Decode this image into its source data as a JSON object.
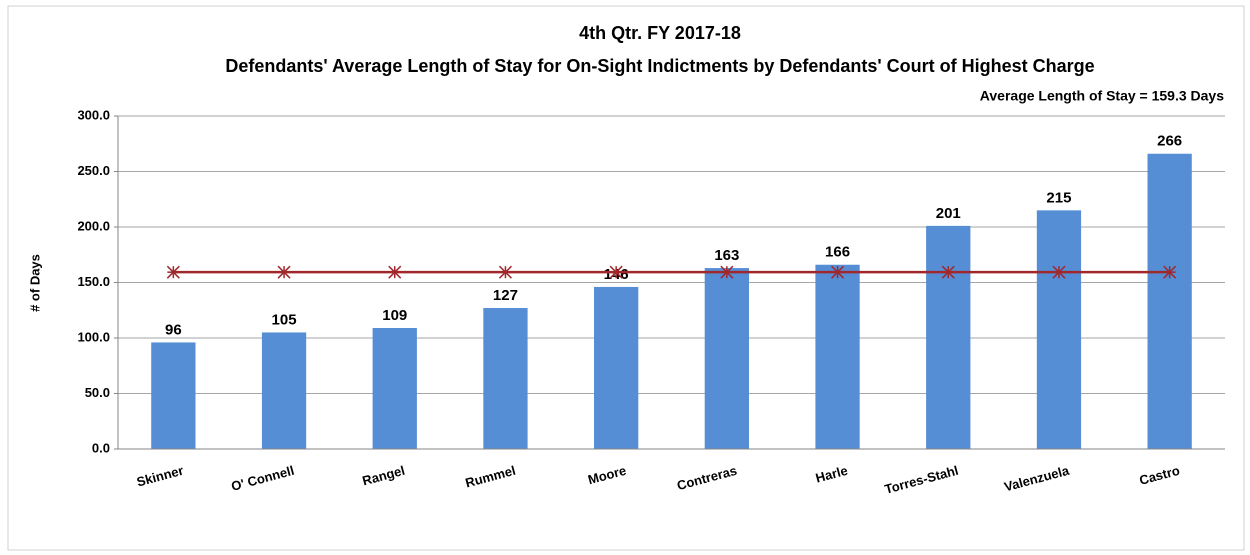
{
  "chart_data": {
    "type": "bar",
    "title": "4th Qtr. FY 2017-18",
    "subtitle": "Defendants' Average Length of Stay for On-Sight Indictments by Defendants' Court of Highest Charge",
    "annotation": "Average Length of Stay = 159.3 Days",
    "y_label": "# of Days",
    "categories": [
      "Skinner",
      "O' Connell",
      "Rangel",
      "Rummel",
      "Moore",
      "Contreras",
      "Harle",
      "Torres-Stahl",
      "Valenzuela",
      "Castro"
    ],
    "values": [
      96,
      105,
      109,
      127,
      146,
      163,
      166,
      201,
      215,
      266
    ],
    "color": "#558ed5",
    "average_line": {
      "color": "#a0282c",
      "values": [
        159.3,
        159.3,
        159.3,
        159.3,
        159.3,
        159.3,
        159.3,
        159.3,
        159.3,
        159.3
      ]
    },
    "ylim": [
      0,
      300
    ],
    "yticks": [
      {
        "value": 0,
        "label": "0.0"
      },
      {
        "value": 50,
        "label": "50.0"
      },
      {
        "value": 100,
        "label": "100.0"
      },
      {
        "value": 150,
        "label": "150.0"
      },
      {
        "value": 200,
        "label": "200.0"
      },
      {
        "value": 250,
        "label": "250.0"
      },
      {
        "value": 300,
        "label": "300.0"
      }
    ],
    "grid": true
  }
}
